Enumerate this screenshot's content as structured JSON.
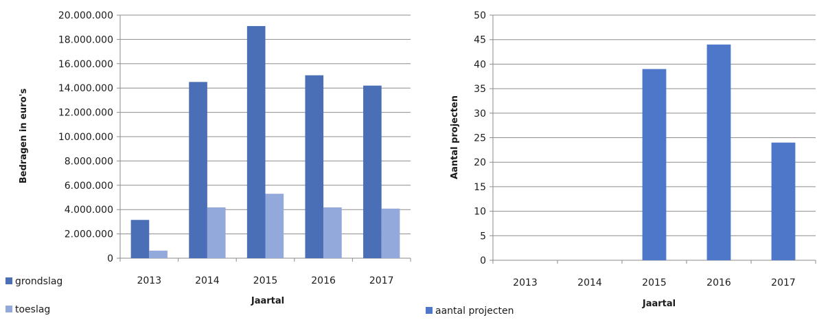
{
  "chart_data": [
    {
      "type": "bar",
      "categories": [
        "2013",
        "2014",
        "2015",
        "2016",
        "2017"
      ],
      "series": [
        {
          "name": "grondslag",
          "values": [
            3150000,
            14500000,
            19100000,
            15050000,
            14200000
          ],
          "color": "#4a6fb7"
        },
        {
          "name": "toeslag",
          "values": [
            620000,
            4180000,
            5300000,
            4180000,
            4080000
          ],
          "color": "#93a9db"
        }
      ],
      "xlabel": "Jaartal",
      "ylabel": "Bedragen in euro's",
      "ylim": [
        0,
        20000000
      ],
      "yticks": [
        0,
        2000000,
        4000000,
        6000000,
        8000000,
        10000000,
        12000000,
        14000000,
        16000000,
        18000000,
        20000000
      ],
      "ytick_labels": [
        "0",
        "2.000.000",
        "4.000.000",
        "6.000.000",
        "8.000.000",
        "10.000.000",
        "12.000.000",
        "14.000.000",
        "16.000.000",
        "18.000.000",
        "20.000.000"
      ],
      "grid": true,
      "legend": "bottom-left"
    },
    {
      "type": "bar",
      "categories": [
        "2013",
        "2014",
        "2015",
        "2016",
        "2017"
      ],
      "series": [
        {
          "name": "aantal projecten",
          "values": [
            0,
            0,
            39,
            44,
            24
          ],
          "color": "#4e77c9"
        }
      ],
      "xlabel": "Jaartal",
      "ylabel": "Aantal projecten",
      "ylim": [
        0,
        50
      ],
      "yticks": [
        0,
        5,
        10,
        15,
        20,
        25,
        30,
        35,
        40,
        45,
        50
      ],
      "ytick_labels": [
        "0",
        "5",
        "10",
        "15",
        "20",
        "25",
        "30",
        "35",
        "40",
        "45",
        "50"
      ],
      "grid": true,
      "legend": "bottom-left"
    }
  ]
}
